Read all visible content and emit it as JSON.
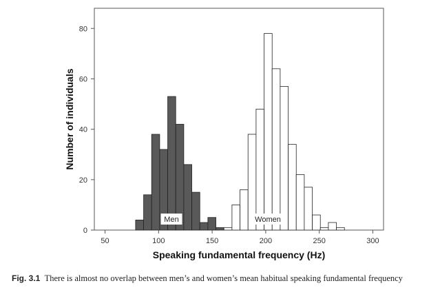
{
  "caption": {
    "label": "Fig. 3.1",
    "text": "There is almost no overlap between men’s and women’s mean habitual speaking fundamental frequency"
  },
  "chart_data": {
    "type": "bar",
    "xlabel": "Speaking fundamental frequency (Hz)",
    "ylabel": "Number of individuals",
    "xlim": [
      40,
      310
    ],
    "ylim": [
      0,
      88
    ],
    "x_ticks": [
      50,
      100,
      150,
      200,
      250,
      300
    ],
    "y_ticks": [
      0,
      20,
      40,
      60,
      80
    ],
    "bin_width": 7.5,
    "grid": false,
    "series": [
      {
        "name": "Men",
        "fill": "#595959",
        "bins": [
          {
            "x0": 78.5,
            "count": 4
          },
          {
            "x0": 86,
            "count": 14
          },
          {
            "x0": 93.5,
            "count": 38
          },
          {
            "x0": 101,
            "count": 32
          },
          {
            "x0": 108.5,
            "count": 53
          },
          {
            "x0": 116,
            "count": 42
          },
          {
            "x0": 123.5,
            "count": 26
          },
          {
            "x0": 131,
            "count": 15
          },
          {
            "x0": 138.5,
            "count": 3
          },
          {
            "x0": 146,
            "count": 5
          },
          {
            "x0": 153.5,
            "count": 1
          }
        ]
      },
      {
        "name": "Women",
        "fill": "#ffffff",
        "bins": [
          {
            "x0": 161,
            "count": 1
          },
          {
            "x0": 168.5,
            "count": 10
          },
          {
            "x0": 176,
            "count": 16
          },
          {
            "x0": 183.5,
            "count": 38
          },
          {
            "x0": 191,
            "count": 48
          },
          {
            "x0": 198.5,
            "count": 78
          },
          {
            "x0": 206,
            "count": 64
          },
          {
            "x0": 213.5,
            "count": 57
          },
          {
            "x0": 221,
            "count": 34
          },
          {
            "x0": 228.5,
            "count": 22
          },
          {
            "x0": 236,
            "count": 17
          },
          {
            "x0": 243.5,
            "count": 6
          },
          {
            "x0": 251,
            "count": 1
          },
          {
            "x0": 258.5,
            "count": 3
          },
          {
            "x0": 266,
            "count": 1
          }
        ]
      }
    ]
  }
}
